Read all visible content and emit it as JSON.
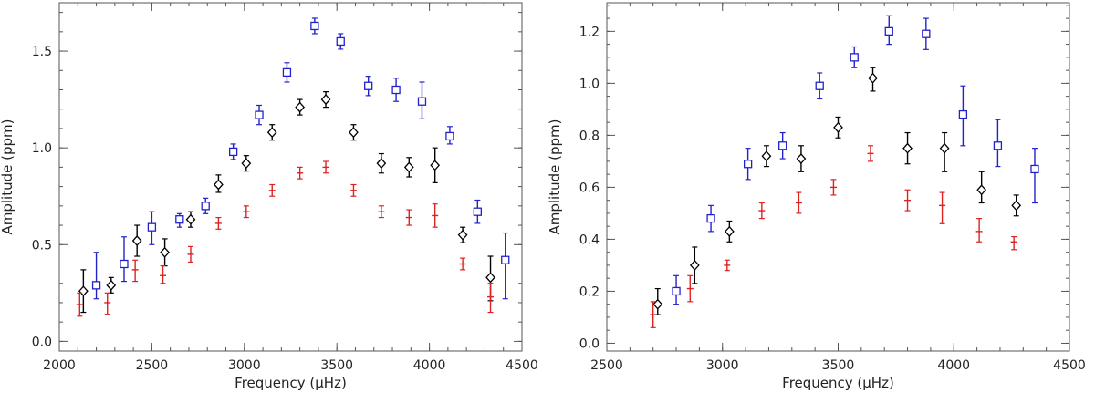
{
  "chart_data": [
    {
      "type": "scatter",
      "xlabel": "Frequency (μHz)",
      "ylabel": "Amplitude (ppm)",
      "xlim": [
        2000,
        4500
      ],
      "ylim": [
        -0.05,
        1.75
      ],
      "xticks": [
        2000,
        2500,
        3000,
        3500,
        4000,
        4500
      ],
      "xtick_labels": [
        "2000",
        "2500",
        "3000",
        "3500",
        "4000",
        "4500"
      ],
      "yticks": [
        0.0,
        0.5,
        1.0,
        1.5
      ],
      "ytick_labels": [
        "0.0",
        "0.5",
        "1.0",
        "1.5"
      ],
      "x_minor_step": 100,
      "y_minor_step": 0.1,
      "series": [
        {
          "name": "blue squares",
          "color": "#2222cc",
          "marker": "square",
          "points": [
            {
              "x": 2200,
              "y": 0.29,
              "lo": 0.22,
              "hi": 0.46
            },
            {
              "x": 2350,
              "y": 0.4,
              "lo": 0.31,
              "hi": 0.54
            },
            {
              "x": 2500,
              "y": 0.59,
              "lo": 0.5,
              "hi": 0.67
            },
            {
              "x": 2650,
              "y": 0.63,
              "lo": 0.59,
              "hi": 0.66
            },
            {
              "x": 2790,
              "y": 0.7,
              "lo": 0.66,
              "hi": 0.74
            },
            {
              "x": 2940,
              "y": 0.98,
              "lo": 0.94,
              "hi": 1.02
            },
            {
              "x": 3080,
              "y": 1.17,
              "lo": 1.12,
              "hi": 1.22
            },
            {
              "x": 3230,
              "y": 1.39,
              "lo": 1.34,
              "hi": 1.44
            },
            {
              "x": 3380,
              "y": 1.63,
              "lo": 1.59,
              "hi": 1.67
            },
            {
              "x": 3520,
              "y": 1.55,
              "lo": 1.51,
              "hi": 1.59
            },
            {
              "x": 3670,
              "y": 1.32,
              "lo": 1.27,
              "hi": 1.37
            },
            {
              "x": 3820,
              "y": 1.3,
              "lo": 1.24,
              "hi": 1.36
            },
            {
              "x": 3960,
              "y": 1.24,
              "lo": 1.15,
              "hi": 1.34
            },
            {
              "x": 4110,
              "y": 1.06,
              "lo": 1.02,
              "hi": 1.11
            },
            {
              "x": 4260,
              "y": 0.67,
              "lo": 0.61,
              "hi": 0.73
            },
            {
              "x": 4410,
              "y": 0.42,
              "lo": 0.22,
              "hi": 0.56
            }
          ]
        },
        {
          "name": "black diamonds",
          "color": "#000000",
          "marker": "diamond",
          "points": [
            {
              "x": 2130,
              "y": 0.26,
              "lo": 0.15,
              "hi": 0.37
            },
            {
              "x": 2280,
              "y": 0.29,
              "lo": 0.25,
              "hi": 0.33
            },
            {
              "x": 2420,
              "y": 0.52,
              "lo": 0.44,
              "hi": 0.6
            },
            {
              "x": 2570,
              "y": 0.46,
              "lo": 0.39,
              "hi": 0.53
            },
            {
              "x": 2710,
              "y": 0.63,
              "lo": 0.59,
              "hi": 0.67
            },
            {
              "x": 2860,
              "y": 0.81,
              "lo": 0.77,
              "hi": 0.86
            },
            {
              "x": 3010,
              "y": 0.92,
              "lo": 0.88,
              "hi": 0.96
            },
            {
              "x": 3150,
              "y": 1.08,
              "lo": 1.04,
              "hi": 1.12
            },
            {
              "x": 3300,
              "y": 1.21,
              "lo": 1.17,
              "hi": 1.25
            },
            {
              "x": 3440,
              "y": 1.25,
              "lo": 1.21,
              "hi": 1.29
            },
            {
              "x": 3590,
              "y": 1.08,
              "lo": 1.04,
              "hi": 1.12
            },
            {
              "x": 3740,
              "y": 0.92,
              "lo": 0.87,
              "hi": 0.97
            },
            {
              "x": 3890,
              "y": 0.9,
              "lo": 0.85,
              "hi": 0.95
            },
            {
              "x": 4030,
              "y": 0.91,
              "lo": 0.82,
              "hi": 1.0
            },
            {
              "x": 4180,
              "y": 0.55,
              "lo": 0.51,
              "hi": 0.59
            },
            {
              "x": 4330,
              "y": 0.33,
              "lo": 0.21,
              "hi": 0.44
            }
          ]
        },
        {
          "name": "red crosses",
          "color": "#dd2222",
          "marker": "plus",
          "points": [
            {
              "x": 2110,
              "y": 0.19,
              "lo": 0.13,
              "hi": 0.25
            },
            {
              "x": 2260,
              "y": 0.2,
              "lo": 0.14,
              "hi": 0.25
            },
            {
              "x": 2410,
              "y": 0.37,
              "lo": 0.31,
              "hi": 0.42
            },
            {
              "x": 2560,
              "y": 0.34,
              "lo": 0.3,
              "hi": 0.39
            },
            {
              "x": 2710,
              "y": 0.45,
              "lo": 0.41,
              "hi": 0.49
            },
            {
              "x": 2860,
              "y": 0.61,
              "lo": 0.58,
              "hi": 0.64
            },
            {
              "x": 3010,
              "y": 0.67,
              "lo": 0.64,
              "hi": 0.7
            },
            {
              "x": 3150,
              "y": 0.78,
              "lo": 0.75,
              "hi": 0.81
            },
            {
              "x": 3300,
              "y": 0.87,
              "lo": 0.84,
              "hi": 0.9
            },
            {
              "x": 3440,
              "y": 0.9,
              "lo": 0.87,
              "hi": 0.93
            },
            {
              "x": 3590,
              "y": 0.78,
              "lo": 0.75,
              "hi": 0.81
            },
            {
              "x": 3740,
              "y": 0.67,
              "lo": 0.64,
              "hi": 0.7
            },
            {
              "x": 3890,
              "y": 0.64,
              "lo": 0.6,
              "hi": 0.68
            },
            {
              "x": 4030,
              "y": 0.65,
              "lo": 0.59,
              "hi": 0.71
            },
            {
              "x": 4180,
              "y": 0.4,
              "lo": 0.37,
              "hi": 0.43
            },
            {
              "x": 4330,
              "y": 0.23,
              "lo": 0.15,
              "hi": 0.3
            }
          ]
        }
      ]
    },
    {
      "type": "scatter",
      "xlabel": "Frequency (μHz)",
      "ylabel": "Amplitude (ppm)",
      "xlim": [
        2500,
        4500
      ],
      "ylim": [
        -0.03,
        1.31
      ],
      "xticks": [
        2500,
        3000,
        3500,
        4000,
        4500
      ],
      "xtick_labels": [
        "2500",
        "3000",
        "3500",
        "4000",
        "4500"
      ],
      "yticks": [
        0.0,
        0.2,
        0.4,
        0.6,
        0.8,
        1.0,
        1.2
      ],
      "ytick_labels": [
        "0.0",
        "0.2",
        "0.4",
        "0.6",
        "0.8",
        "1.0",
        "1.2"
      ],
      "x_minor_step": 100,
      "y_minor_step": 0.05,
      "series": [
        {
          "name": "blue squares",
          "color": "#2222cc",
          "marker": "square",
          "points": [
            {
              "x": 2800,
              "y": 0.2,
              "lo": 0.15,
              "hi": 0.26
            },
            {
              "x": 2950,
              "y": 0.48,
              "lo": 0.43,
              "hi": 0.53
            },
            {
              "x": 3110,
              "y": 0.69,
              "lo": 0.63,
              "hi": 0.75
            },
            {
              "x": 3260,
              "y": 0.76,
              "lo": 0.71,
              "hi": 0.81
            },
            {
              "x": 3420,
              "y": 0.99,
              "lo": 0.94,
              "hi": 1.04
            },
            {
              "x": 3570,
              "y": 1.1,
              "lo": 1.06,
              "hi": 1.14
            },
            {
              "x": 3720,
              "y": 1.2,
              "lo": 1.15,
              "hi": 1.26
            },
            {
              "x": 3880,
              "y": 1.19,
              "lo": 1.13,
              "hi": 1.25
            },
            {
              "x": 4040,
              "y": 0.88,
              "lo": 0.76,
              "hi": 0.99
            },
            {
              "x": 4190,
              "y": 0.76,
              "lo": 0.68,
              "hi": 0.86
            },
            {
              "x": 4350,
              "y": 0.67,
              "lo": 0.54,
              "hi": 0.75
            }
          ]
        },
        {
          "name": "black diamonds",
          "color": "#000000",
          "marker": "diamond",
          "points": [
            {
              "x": 2720,
              "y": 0.15,
              "lo": 0.11,
              "hi": 0.21
            },
            {
              "x": 2880,
              "y": 0.3,
              "lo": 0.23,
              "hi": 0.37
            },
            {
              "x": 3030,
              "y": 0.43,
              "lo": 0.39,
              "hi": 0.47
            },
            {
              "x": 3190,
              "y": 0.72,
              "lo": 0.68,
              "hi": 0.76
            },
            {
              "x": 3340,
              "y": 0.71,
              "lo": 0.66,
              "hi": 0.76
            },
            {
              "x": 3500,
              "y": 0.83,
              "lo": 0.79,
              "hi": 0.87
            },
            {
              "x": 3650,
              "y": 1.02,
              "lo": 0.97,
              "hi": 1.06
            },
            {
              "x": 3800,
              "y": 0.75,
              "lo": 0.69,
              "hi": 0.81
            },
            {
              "x": 3960,
              "y": 0.75,
              "lo": 0.66,
              "hi": 0.81
            },
            {
              "x": 4120,
              "y": 0.59,
              "lo": 0.54,
              "hi": 0.66
            },
            {
              "x": 4270,
              "y": 0.53,
              "lo": 0.49,
              "hi": 0.57
            }
          ]
        },
        {
          "name": "red crosses",
          "color": "#dd2222",
          "marker": "plus",
          "points": [
            {
              "x": 2700,
              "y": 0.11,
              "lo": 0.06,
              "hi": 0.16
            },
            {
              "x": 2860,
              "y": 0.21,
              "lo": 0.16,
              "hi": 0.26
            },
            {
              "x": 3020,
              "y": 0.3,
              "lo": 0.28,
              "hi": 0.32
            },
            {
              "x": 3170,
              "y": 0.51,
              "lo": 0.48,
              "hi": 0.54
            },
            {
              "x": 3330,
              "y": 0.54,
              "lo": 0.5,
              "hi": 0.58
            },
            {
              "x": 3480,
              "y": 0.6,
              "lo": 0.57,
              "hi": 0.63
            },
            {
              "x": 3640,
              "y": 0.73,
              "lo": 0.7,
              "hi": 0.76
            },
            {
              "x": 3800,
              "y": 0.55,
              "lo": 0.51,
              "hi": 0.59
            },
            {
              "x": 3950,
              "y": 0.53,
              "lo": 0.46,
              "hi": 0.58
            },
            {
              "x": 4110,
              "y": 0.43,
              "lo": 0.39,
              "hi": 0.48
            },
            {
              "x": 4260,
              "y": 0.39,
              "lo": 0.36,
              "hi": 0.41
            }
          ]
        }
      ]
    }
  ]
}
